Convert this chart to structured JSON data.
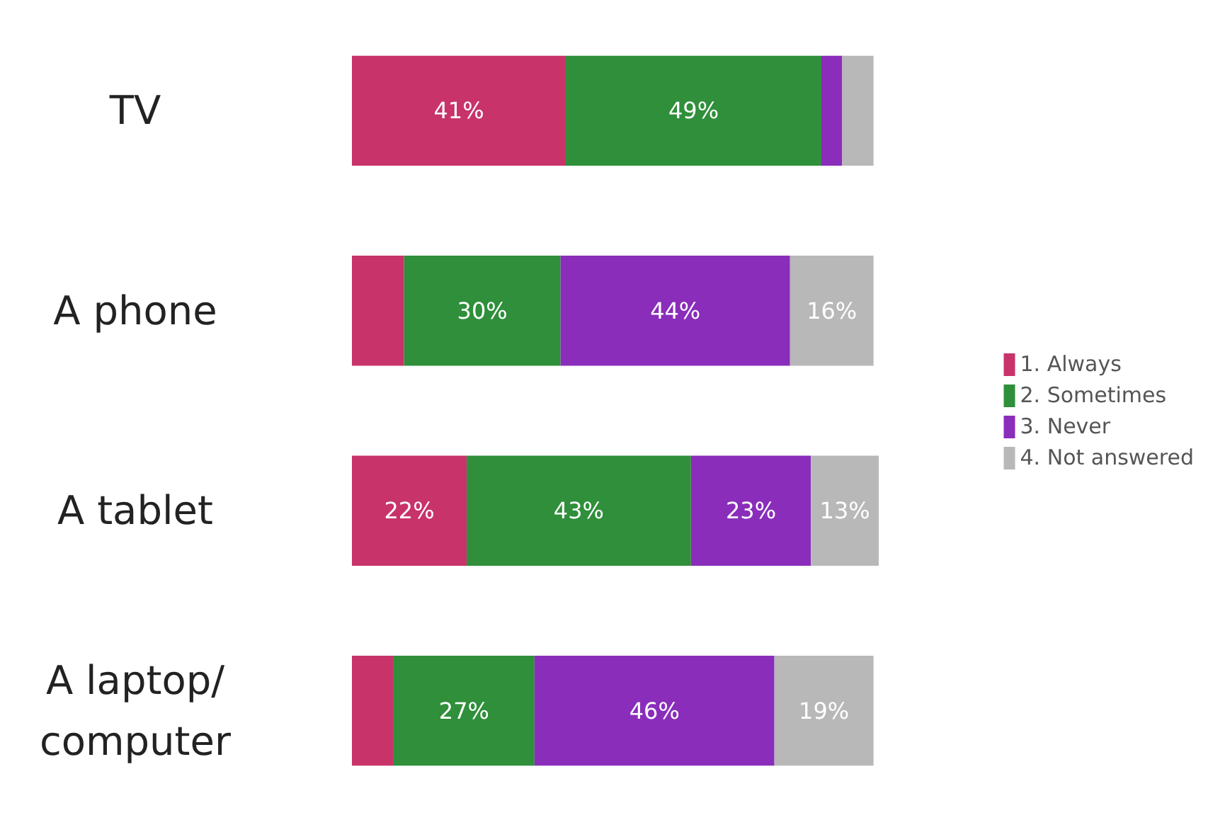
{
  "chart_data": {
    "type": "bar",
    "orientation": "horizontal",
    "stacked": true,
    "categories": [
      "TV",
      "A phone",
      "A tablet",
      "A laptop/\ncomputer"
    ],
    "series": [
      {
        "name": "1. Always",
        "color": "#c8336a",
        "values": [
          41,
          10,
          22,
          8
        ],
        "value_labels": [
          "41%",
          null,
          "22%",
          null
        ]
      },
      {
        "name": "2. Sometimes",
        "color": "#2f8f3a",
        "values": [
          49,
          30,
          43,
          27
        ],
        "value_labels": [
          "49%",
          "30%",
          "43%",
          "27%"
        ]
      },
      {
        "name": "3. Never",
        "color": "#8a2dbb",
        "values": [
          4,
          44,
          23,
          46
        ],
        "value_labels": [
          null,
          "44%",
          "23%",
          "46%"
        ]
      },
      {
        "name": "4. Not answered",
        "color": "#b8b8b8",
        "values": [
          6,
          16,
          13,
          19
        ],
        "value_labels": [
          null,
          "16%",
          "13%",
          "19%"
        ]
      }
    ],
    "legend": "right"
  }
}
